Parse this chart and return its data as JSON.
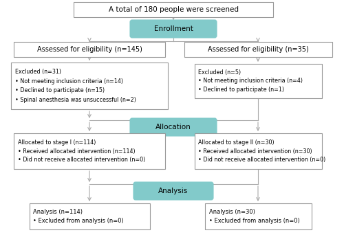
{
  "title_box": "A total of 180 people were screened",
  "enrollment_label": "Enrollment",
  "allocation_label": "Allocation",
  "analysis_label": "Analysis",
  "left_eligibility": "Assessed for eligibility (n=145)",
  "right_eligibility": "Assessed for eligibility (n=35)",
  "left_excluded_title": "Excluded (n=31)",
  "left_excluded_bullets": [
    "• Not meeting inclusion criteria (n=14)",
    "• Declined to participate (n=15)",
    "• Spinal anesthesia was unsuccessful (n=2)"
  ],
  "right_excluded_title": "Excluded (n=5)",
  "right_excluded_bullets": [
    "• Not meeting inclusion criteria (n=4)",
    "• Declined to participate (n=1)"
  ],
  "left_allocation_title": "Allocated to stage I (n=114)",
  "left_allocation_bullets": [
    "• Received allocated intervention (n=114)",
    "• Did not receive allocated intervention (n=0)"
  ],
  "right_allocation_title": "Allocated to stage II (n=30)",
  "right_allocation_bullets": [
    "• Received allocated intervention (n=30)",
    "• Did not receive allocated intervention (n=0)"
  ],
  "left_analysis_title": "Analysis (n=114)",
  "left_analysis_bullets": [
    "• Excluded from analysis (n=0)"
  ],
  "right_analysis_title": "Analysis (n=30)",
  "right_analysis_bullets": [
    "• Excluded from analysis (n=0)"
  ],
  "box_facecolor": "#ffffff",
  "box_edgecolor": "#999999",
  "teal_facecolor": "#82caca",
  "teal_edgecolor": "#82caca",
  "arrow_color": "#aaaaaa",
  "text_color": "#000000",
  "bg_color": "#ffffff"
}
